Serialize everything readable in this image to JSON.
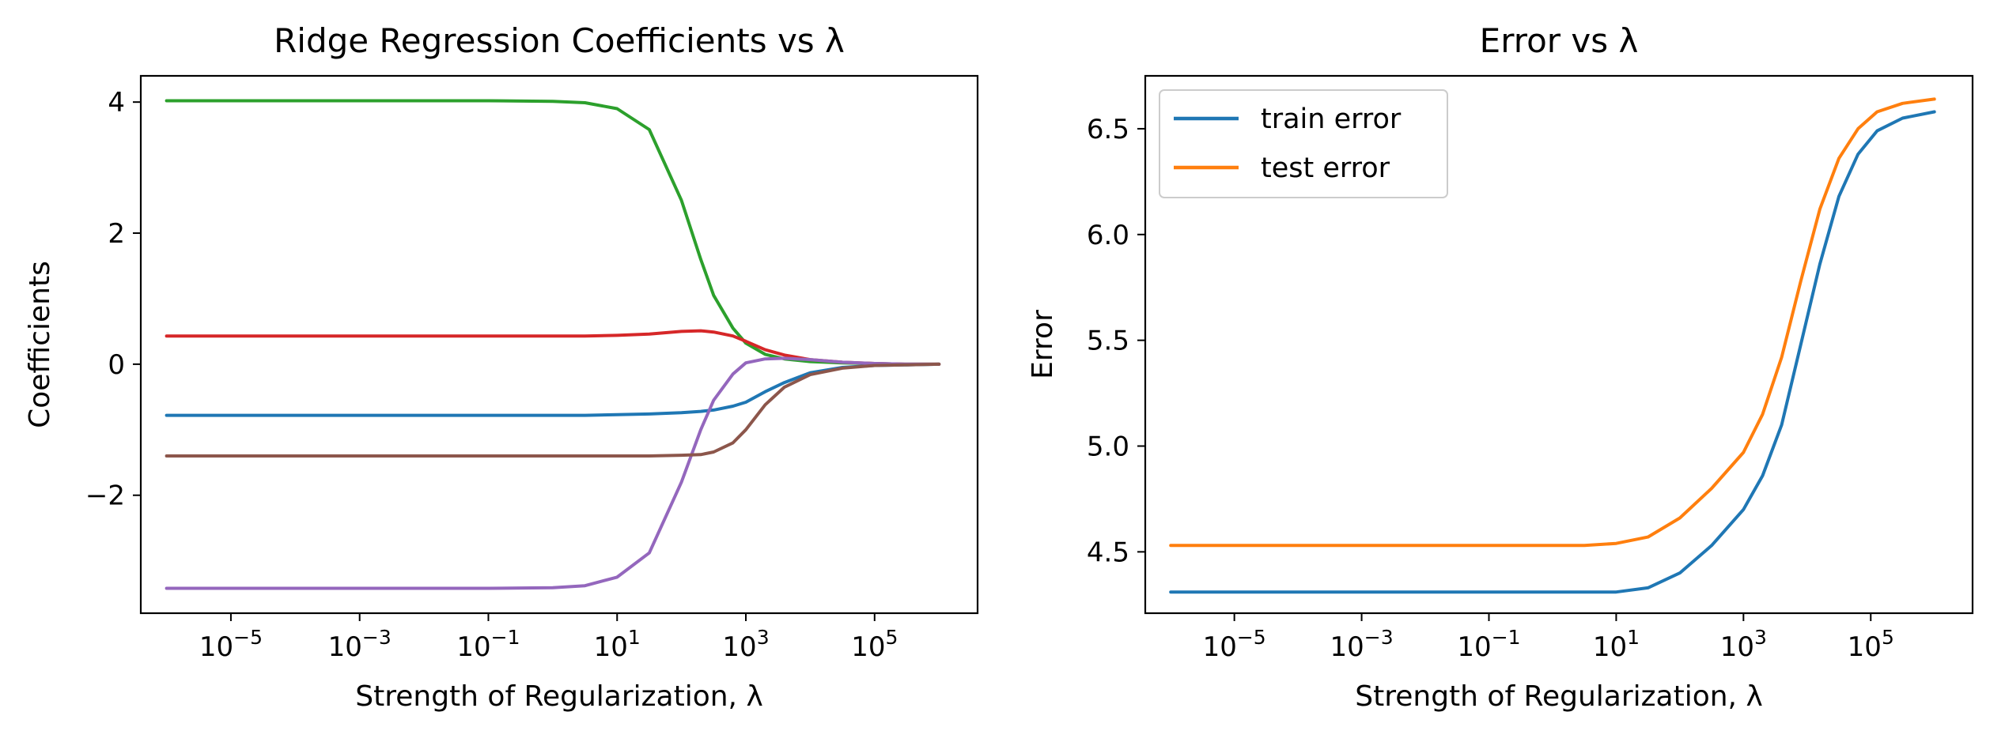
{
  "chart_data": [
    {
      "type": "line",
      "title": "Ridge Regression Coefficients vs λ",
      "xlabel": "Strength of Regularization, λ",
      "ylabel": "Coefficients",
      "xscale": "log",
      "xlim_exp": [
        -6.4,
        6.6
      ],
      "ylim": [
        -3.8,
        4.4
      ],
      "x_ticks": [
        {
          "base": "10",
          "exp": "−5",
          "value": -5
        },
        {
          "base": "10",
          "exp": "−3",
          "value": -3
        },
        {
          "base": "10",
          "exp": "−1",
          "value": -1
        },
        {
          "base": "10",
          "exp": "1",
          "value": 1
        },
        {
          "base": "10",
          "exp": "3",
          "value": 3
        },
        {
          "base": "10",
          "exp": "5",
          "value": 5
        }
      ],
      "y_ticks": [
        {
          "label": "4",
          "value": 4
        },
        {
          "label": "2",
          "value": 2
        },
        {
          "label": "0",
          "value": 0
        },
        {
          "label": "−2",
          "value": -2
        }
      ],
      "grid": false,
      "x_exponents": [
        -6,
        -5,
        -4,
        -3,
        -2,
        -1,
        0,
        0.5,
        1,
        1.5,
        2,
        2.3,
        2.5,
        2.8,
        3,
        3.3,
        3.6,
        4,
        4.5,
        5,
        5.5,
        6
      ],
      "series": [
        {
          "color": "#1f77b4",
          "values": [
            -0.78,
            -0.78,
            -0.78,
            -0.78,
            -0.78,
            -0.78,
            -0.78,
            -0.78,
            -0.77,
            -0.76,
            -0.74,
            -0.72,
            -0.7,
            -0.64,
            -0.58,
            -0.42,
            -0.28,
            -0.13,
            -0.05,
            -0.02,
            -0.01,
            0.0
          ]
        },
        {
          "color": "#2ca02c",
          "values": [
            4.02,
            4.02,
            4.02,
            4.02,
            4.02,
            4.02,
            4.01,
            3.99,
            3.9,
            3.58,
            2.5,
            1.6,
            1.05,
            0.55,
            0.32,
            0.15,
            0.08,
            0.04,
            0.02,
            0.01,
            0.0,
            0.0
          ]
        },
        {
          "color": "#d62728",
          "values": [
            0.43,
            0.43,
            0.43,
            0.43,
            0.43,
            0.43,
            0.43,
            0.43,
            0.44,
            0.46,
            0.5,
            0.51,
            0.49,
            0.43,
            0.35,
            0.22,
            0.14,
            0.07,
            0.03,
            0.01,
            0.0,
            0.0
          ]
        },
        {
          "color": "#9467bd",
          "values": [
            -3.42,
            -3.42,
            -3.42,
            -3.42,
            -3.42,
            -3.42,
            -3.41,
            -3.38,
            -3.25,
            -2.88,
            -1.8,
            -1.0,
            -0.55,
            -0.15,
            0.02,
            0.08,
            0.09,
            0.07,
            0.03,
            0.01,
            0.0,
            0.0
          ]
        },
        {
          "color": "#8c564b",
          "values": [
            -1.4,
            -1.4,
            -1.4,
            -1.4,
            -1.4,
            -1.4,
            -1.4,
            -1.4,
            -1.4,
            -1.4,
            -1.39,
            -1.38,
            -1.34,
            -1.2,
            -1.0,
            -0.62,
            -0.35,
            -0.16,
            -0.06,
            -0.02,
            -0.01,
            0.0
          ]
        }
      ]
    },
    {
      "type": "line",
      "title": "Error vs λ",
      "xlabel": "Strength of Regularization, λ",
      "ylabel": "Error",
      "xscale": "log",
      "xlim_exp": [
        -6.4,
        6.6
      ],
      "ylim": [
        4.21,
        6.75
      ],
      "x_ticks": [
        {
          "base": "10",
          "exp": "−5",
          "value": -5
        },
        {
          "base": "10",
          "exp": "−3",
          "value": -3
        },
        {
          "base": "10",
          "exp": "−1",
          "value": -1
        },
        {
          "base": "10",
          "exp": "1",
          "value": 1
        },
        {
          "base": "10",
          "exp": "3",
          "value": 3
        },
        {
          "base": "10",
          "exp": "5",
          "value": 5
        }
      ],
      "y_ticks": [
        {
          "label": "6.5",
          "value": 6.5
        },
        {
          "label": "6.0",
          "value": 6.0
        },
        {
          "label": "5.5",
          "value": 5.5
        },
        {
          "label": "5.0",
          "value": 5.0
        },
        {
          "label": "4.5",
          "value": 4.5
        }
      ],
      "grid": false,
      "legend_position": "top-left",
      "x_exponents": [
        -6,
        -5,
        -4,
        -3,
        -2,
        -1,
        0,
        0.5,
        1,
        1.5,
        2,
        2.5,
        3,
        3.3,
        3.6,
        3.9,
        4.2,
        4.5,
        4.8,
        5.1,
        5.5,
        6
      ],
      "series": [
        {
          "name": "train error",
          "color": "#1f77b4",
          "values": [
            4.31,
            4.31,
            4.31,
            4.31,
            4.31,
            4.31,
            4.31,
            4.31,
            4.31,
            4.33,
            4.4,
            4.53,
            4.7,
            4.86,
            5.1,
            5.48,
            5.86,
            6.18,
            6.38,
            6.49,
            6.55,
            6.58
          ]
        },
        {
          "name": "test error",
          "color": "#ff7f0e",
          "values": [
            4.53,
            4.53,
            4.53,
            4.53,
            4.53,
            4.53,
            4.53,
            4.53,
            4.54,
            4.57,
            4.66,
            4.8,
            4.97,
            5.15,
            5.42,
            5.78,
            6.12,
            6.36,
            6.5,
            6.58,
            6.62,
            6.64
          ]
        }
      ]
    }
  ]
}
